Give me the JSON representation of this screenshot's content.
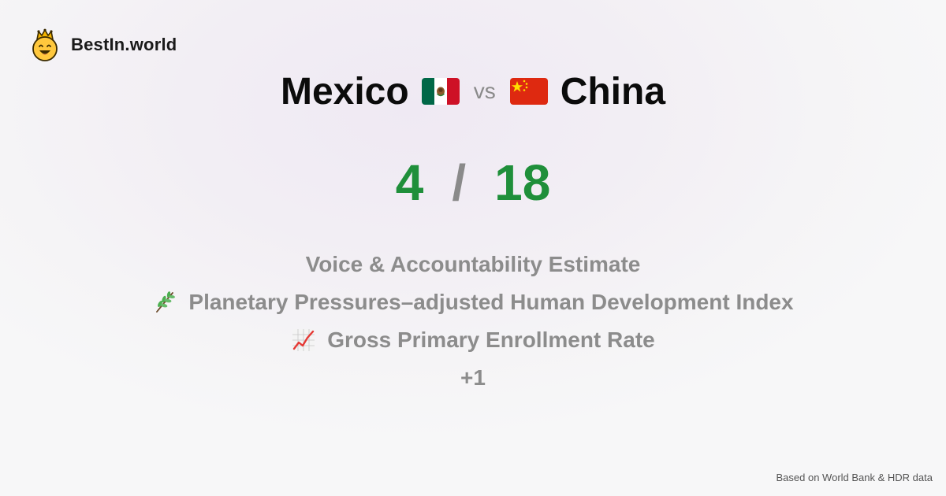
{
  "brand": {
    "name": "BestIn.world",
    "logo_icon": "crowned-smiley-icon"
  },
  "comparison": {
    "left": {
      "name": "Mexico",
      "flag_icon": "mexico-flag-icon"
    },
    "separator": "vs",
    "right": {
      "name": "China",
      "flag_icon": "china-flag-icon"
    }
  },
  "score": {
    "left": "4",
    "separator": "/",
    "right": "18",
    "color": "#1f8f3a"
  },
  "metrics": [
    {
      "label": "Voice & Accountability Estimate",
      "icon": ""
    },
    {
      "label": "Planetary Pressures–adjusted Human Development Index",
      "icon": "herb-icon"
    },
    {
      "label": "Gross Primary Enrollment Rate",
      "icon": "chart-increasing-icon"
    }
  ],
  "more_label": "+1",
  "footer": "Based on World Bank & HDR data"
}
